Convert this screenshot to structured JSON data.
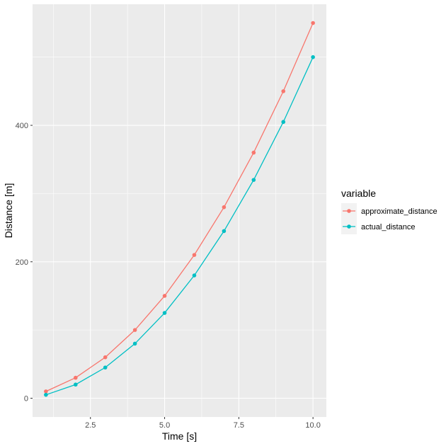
{
  "chart_data": {
    "type": "line",
    "xlabel": "Time [s]",
    "ylabel": "Distance [m]",
    "xlim": [
      0.55,
      10.45
    ],
    "ylim": [
      -27.5,
      577.5
    ],
    "x_ticks": [
      2.5,
      5.0,
      7.5,
      10.0
    ],
    "x_tick_labels": [
      "2.5",
      "5.0",
      "7.5",
      "10.0"
    ],
    "y_ticks": [
      0,
      200,
      400
    ],
    "y_tick_labels": [
      "0",
      "200",
      "400"
    ],
    "grid": true,
    "legend": {
      "title": "variable",
      "placement": "right"
    },
    "x": [
      1,
      2,
      3,
      4,
      5,
      6,
      7,
      8,
      9,
      10
    ],
    "series": [
      {
        "name": "approximate_distance",
        "color": "#F8766D",
        "values": [
          10,
          30,
          60,
          100,
          150,
          210,
          280,
          360,
          450,
          550
        ]
      },
      {
        "name": "actual_distance",
        "color": "#00BFC4",
        "values": [
          5,
          20,
          45,
          80,
          125,
          180,
          245,
          320,
          405,
          500
        ]
      }
    ],
    "panel_color": "#EBEBEB",
    "grid_color": "#FFFFFF"
  }
}
